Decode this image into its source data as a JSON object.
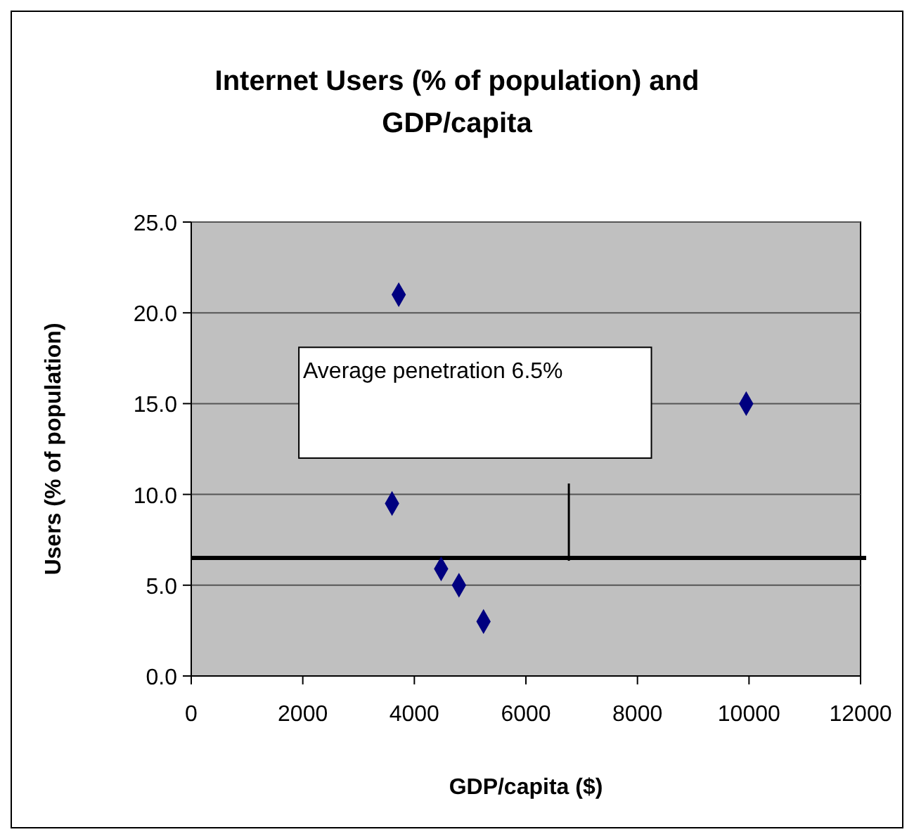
{
  "chart_data": {
    "type": "scatter",
    "title": "Internet Users (% of population) and GDP/capita",
    "xlabel": "GDP/capita ($)",
    "ylabel": "Users (% of population)",
    "x": [
      3720,
      3600,
      4480,
      4800,
      5240,
      9950
    ],
    "series": [
      {
        "color": "#000080",
        "values": [
          21.0,
          9.5,
          5.9,
          5.0,
          3.0,
          15.0
        ]
      }
    ],
    "xlim": [
      0,
      12000
    ],
    "xticks": [
      0,
      2000,
      4000,
      6000,
      8000,
      10000,
      12000
    ],
    "ylim": [
      0,
      25
    ],
    "yticks": [
      {
        "value": 0,
        "label": "0.0"
      },
      {
        "value": 5,
        "label": "5.0"
      },
      {
        "value": 10,
        "label": "10.0"
      },
      {
        "value": 15,
        "label": "15.0"
      },
      {
        "value": 20,
        "label": "20.0"
      },
      {
        "value": 25,
        "label": "25.0"
      }
    ],
    "ref_lines": [
      {
        "axis": "y",
        "value": 6.5,
        "label": "Average penetration 6.5%",
        "color": "#000000"
      }
    ],
    "grid": "y",
    "marker": "diamond"
  }
}
